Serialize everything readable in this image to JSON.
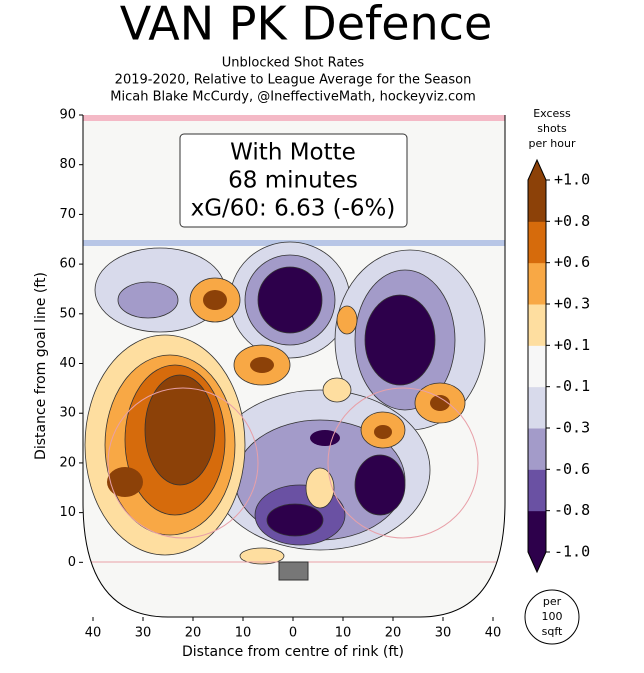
{
  "chart_data": {
    "type": "contour",
    "title": "VAN PK Defence",
    "subtitle": [
      "Unblocked Shot Rates",
      "2019-2020, Relative to League Average for the Season",
      "Micah Blake McCurdy, @IneffectiveMath, hockeyviz.com"
    ],
    "annotation": [
      "With Motte",
      "68 minutes",
      "xG/60: 6.63 (-6%)"
    ],
    "x_label": "Distance from centre of rink (ft)",
    "y_label": "Distance from goal line (ft)",
    "xlim": [
      -42,
      42
    ],
    "ylim": [
      -11,
      90
    ],
    "xticks": [
      {
        "value": -40,
        "label": "40"
      },
      {
        "value": -30,
        "label": "30"
      },
      {
        "value": -20,
        "label": "20"
      },
      {
        "value": -10,
        "label": "10"
      },
      0,
      10,
      20,
      30,
      40
    ],
    "yticks": [
      0,
      10,
      20,
      30,
      40,
      50,
      60,
      70,
      80,
      90
    ],
    "colorbar_title": [
      "Excess",
      "shots",
      "per hour"
    ],
    "colorbar_ticks": [
      {
        "value": -1.0,
        "label": "-1.0"
      },
      {
        "value": -0.8,
        "label": "-0.8"
      },
      {
        "value": -0.6,
        "label": "-0.6"
      },
      {
        "value": -0.3,
        "label": "-0.3"
      },
      {
        "value": -0.1,
        "label": "-0.1"
      },
      {
        "value": 0.1,
        "label": "+0.1"
      },
      {
        "value": 0.3,
        "label": "+0.3"
      },
      {
        "value": 0.6,
        "label": "+0.6"
      },
      {
        "value": 0.8,
        "label": "+0.8"
      },
      {
        "value": 1.0,
        "label": "+1.0"
      }
    ],
    "colorbar_colors": [
      "#2d004b",
      "#6a51a3",
      "#a39bc9",
      "#d8daeb",
      "#f7f7f7",
      "#fedeA0",
      "#f8a845",
      "#d66b0c",
      "#8c4108"
    ],
    "unit_note": [
      "per",
      "100",
      "sqft"
    ]
  }
}
